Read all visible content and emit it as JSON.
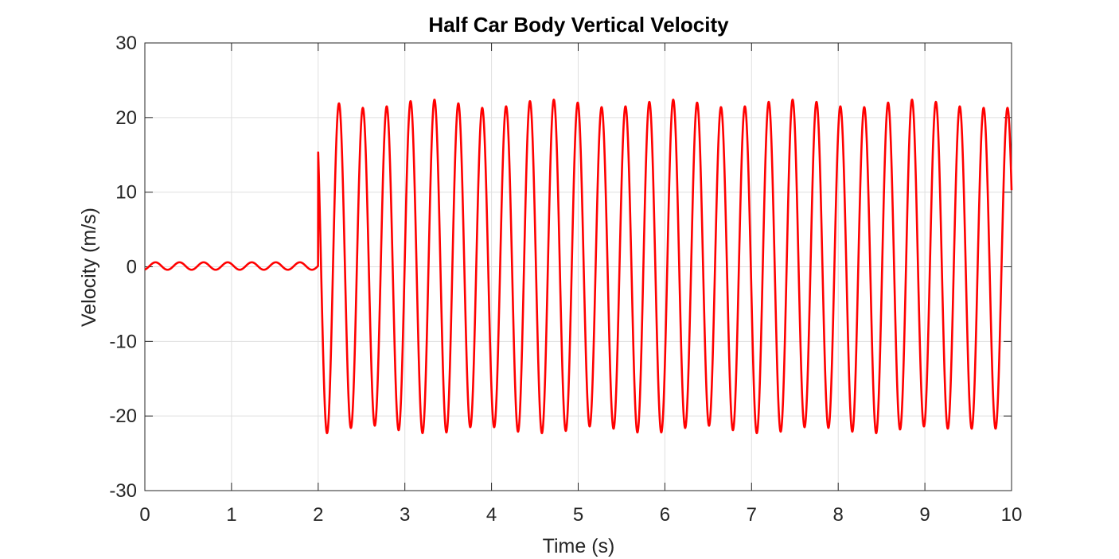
{
  "chart_data": {
    "type": "line",
    "title": "Half Car Body Vertical Velocity",
    "xlabel": "Time (s)",
    "ylabel": "Velocity (m/s)",
    "xlim": [
      0,
      10
    ],
    "ylim": [
      -30,
      30
    ],
    "xticks": [
      0,
      1,
      2,
      3,
      4,
      5,
      6,
      7,
      8,
      9,
      10
    ],
    "yticks": [
      -30,
      -20,
      -10,
      0,
      10,
      20,
      30
    ],
    "grid": true,
    "line_color": "#ff0000",
    "series": [
      {
        "segments": [
          {
            "t_start": 0,
            "t_end": 2,
            "amplitude": 0.5,
            "frequency_hz": 3.6
          },
          {
            "t_start": 2,
            "t_end": 10,
            "amplitude": 22,
            "frequency_hz": 3.63
          }
        ],
        "peak_maxima": [
          22.4,
          21.9,
          21.3,
          21.5,
          22.2,
          22.4,
          21.9,
          21.3,
          21.5,
          22.2,
          22.4,
          22.0,
          21.4,
          21.5,
          22.1,
          22.4,
          22.0,
          21.4,
          21.5,
          22.1,
          22.4,
          22.1,
          21.5,
          21.4,
          22.0,
          22.4,
          22.1,
          21.5,
          21.3
        ],
        "peak_minima": [
          -22.3,
          -21.6,
          -21.3,
          -21.9,
          -22.3,
          -22.2,
          -21.5,
          -21.5,
          -22.1,
          -22.3,
          -22.0,
          -21.4,
          -21.7,
          -22.2,
          -22.2,
          -21.6,
          -21.3,
          -21.9,
          -22.3,
          -22.1,
          -21.5,
          -21.6,
          -22.1,
          -22.3,
          -21.8,
          -21.4,
          -21.7
        ]
      }
    ]
  }
}
